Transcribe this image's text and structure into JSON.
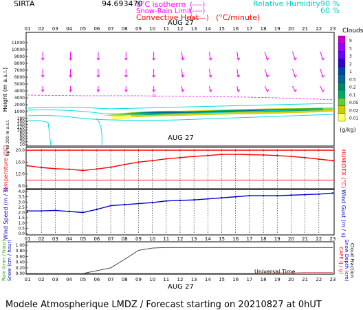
{
  "header": {
    "site": "SIRTA",
    "coord": "94.693470",
    "legend_left": [
      {
        "label": "0°C isotherm",
        "sample": "(----)",
        "color": "#ff00ff"
      },
      {
        "label": "Snow-Rain Limit",
        "sample": "(----)",
        "color": "#ff00ff"
      },
      {
        "label": "Convective Heat",
        "sample": "(——)",
        "color": "#ff0000"
      }
    ],
    "heat_unit": "(°C/minute)",
    "rh_label": "Relative Humidity",
    "rh_levels": [
      "90 %",
      "60 %"
    ],
    "rh_color": "#00d8d8"
  },
  "hours": [
    "01",
    "02",
    "03",
    "04",
    "05",
    "06",
    "07",
    "08",
    "09",
    "10",
    "11",
    "12",
    "13",
    "14",
    "15",
    "16",
    "17",
    "18",
    "19",
    "20",
    "21",
    "22",
    "23"
  ],
  "date_label": "AUG 27",
  "footer": "Modele Atmospherique LMDZ / Forecast starting on 20210827 at 0hUT",
  "universal_time": "Universal Time",
  "panels": {
    "height": {
      "ylabel": "Height  (m a.s.l.)",
      "ylabel2": "Up to 200 m a.s.l.",
      "yticks_upper": [
        "11000",
        "10000",
        "9000",
        "8000",
        "7000",
        "6000",
        "5000",
        "4000",
        "3000",
        "2000",
        "1000"
      ],
      "yticks_lower": [
        "180",
        "160",
        "140",
        "120",
        "100",
        "80",
        "60",
        "40",
        "20",
        "10"
      ],
      "clouds_title": "Clouds",
      "clouds_unit": "(g/kg)",
      "clouds_levels": [
        "9",
        "5",
        "3",
        "2",
        "1",
        "0.5",
        "0.2",
        "0.1",
        "0.05",
        "0.02",
        "0.01"
      ],
      "clouds_colors": [
        "#cc00cc",
        "#9900ff",
        "#6600ff",
        "#3300cc",
        "#0044aa",
        "#006699",
        "#008866",
        "#00aa66",
        "#66cc33",
        "#cccc00",
        "#ffff66"
      ]
    },
    "temperature": {
      "ylabel": "Temperature (°C)",
      "ylabel2": "HUMIDEX (°C)",
      "yticks": [
        "20.0",
        "16.0",
        "12.0",
        "8.0"
      ]
    },
    "wind": {
      "ylabel": "Wind Speed (m / s)",
      "ylabel2": "Wind Gust (m / s)",
      "yticks": [
        "4.0",
        "3.5",
        "3.0",
        "2.5",
        "2.0",
        "1.5",
        "1.0",
        "0.5",
        "0.0"
      ]
    },
    "rain": {
      "ylabel": "Rain (mm / hour)",
      "ylabel_b": "Snow (cm / hour)",
      "ylabel2": "CAPE (J / g)",
      "ylabel2_b": "Snow Depth (cm)",
      "ylabel2_c": "Cloud Fraction",
      "yticks": [
        "1.00",
        "0.80",
        "0.60",
        "0.40",
        "0.20",
        "0.00"
      ]
    }
  },
  "chart_data": [
    {
      "type": "line",
      "title": "Temperature",
      "x": [
        "01",
        "02",
        "03",
        "04",
        "05",
        "06",
        "07",
        "08",
        "09",
        "10",
        "11",
        "12",
        "13",
        "14",
        "15",
        "16",
        "17",
        "18",
        "19",
        "20",
        "21",
        "22",
        "23"
      ],
      "ylim": [
        8,
        20
      ],
      "series": [
        {
          "values": [
            14.8,
            14.2,
            13.8,
            13.6,
            13.2,
            13.7,
            14.3,
            15.2,
            16.0,
            16.5,
            17.1,
            17.5,
            17.9,
            18.2,
            18.6,
            18.6,
            18.5,
            18.4,
            18.2,
            17.9,
            17.5,
            17.0,
            16.5
          ],
          "color": "#ff0000"
        }
      ],
      "reference_lines": [
        20.0,
        10.0
      ]
    },
    {
      "type": "line",
      "title": "Wind Speed",
      "x": [
        "01",
        "02",
        "03",
        "04",
        "05",
        "06",
        "07",
        "08",
        "09",
        "10",
        "11",
        "12",
        "13",
        "14",
        "15",
        "16",
        "17",
        "18",
        "19",
        "20",
        "21",
        "22",
        "23"
      ],
      "ylim": [
        0,
        4
      ],
      "series": [
        {
          "values": [
            2.15,
            2.15,
            2.2,
            2.1,
            2.0,
            2.3,
            2.65,
            2.75,
            2.85,
            2.95,
            3.1,
            3.15,
            3.2,
            3.3,
            3.4,
            3.5,
            3.6,
            3.6,
            3.6,
            3.65,
            3.7,
            3.75,
            3.85
          ],
          "color": "#0000cc"
        }
      ]
    },
    {
      "type": "line",
      "title": "Rain",
      "x": [
        "01",
        "02",
        "03",
        "04",
        "05",
        "06",
        "07",
        "08",
        "09",
        "10",
        "11",
        "12",
        "13",
        "14",
        "15",
        "16",
        "17",
        "18",
        "19",
        "20",
        "21",
        "22",
        "23"
      ],
      "ylim": [
        0,
        1
      ],
      "series": [
        {
          "values": [
            0,
            0,
            0,
            0,
            0,
            0.1,
            0.2,
            0.5,
            0.82,
            0.9,
            0.92,
            0.92,
            0.92,
            0.92,
            0.92,
            0.92,
            0.92,
            0.92,
            0.92,
            0.92,
            0.92,
            0.92,
            0.92
          ],
          "color": "#333333"
        },
        {
          "values": [
            0,
            0,
            0,
            0,
            0,
            0,
            0,
            0,
            0,
            0,
            0,
            0,
            0,
            0,
            0,
            0,
            0,
            0.02,
            0.02,
            0.02,
            0.03,
            0.03,
            0.03
          ],
          "color": "#cc3333"
        }
      ]
    }
  ]
}
